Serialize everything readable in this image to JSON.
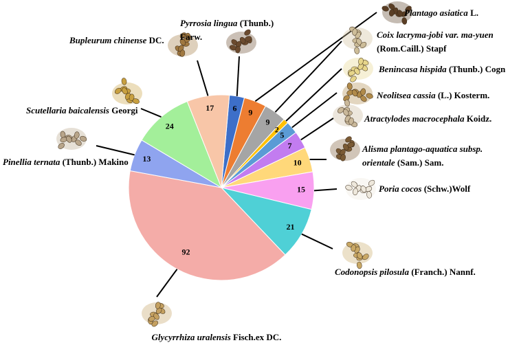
{
  "chart_data": {
    "type": "pie",
    "categories": [
      "Pyrrosia lingua",
      "Plantago asiatica",
      "Coix lacryma-jobi var. ma-yuen",
      "Benincasa hispida",
      "Neolitsea cassia",
      "Atractylodes macrocephala",
      "Alisma plantago-aquatica subsp. orientale",
      "Poria cocos",
      "Codonopsis pilosula",
      "Glycyrrhiza uralensis",
      "Pinellia ternata",
      "Scutellaria baicalensis",
      "Bupleurum chinense"
    ],
    "authorities": [
      "(Thunb.) Farw.",
      "L.",
      "(Rom.Caill.) Stapf",
      "(Thunb.) Cogn",
      "(L.) Kosterm.",
      "Koidz.",
      "(Sam.) Sam.",
      "(Schw.)Wolf",
      "(Franch.) Nannf.",
      "Fisch.ex DC.",
      "(Thunb.) Makino",
      "Georgi",
      "DC."
    ],
    "values": [
      6,
      9,
      9,
      2,
      5,
      7,
      10,
      15,
      21,
      92,
      13,
      24,
      17
    ],
    "colors": [
      "#3d6fc9",
      "#ed7d31",
      "#a5a5a5",
      "#ffc000",
      "#5b9bd5",
      "#c27cf0",
      "#ffd87a",
      "#f9a0f0",
      "#4fd0d6",
      "#f4aca8",
      "#8fa4ef",
      "#a3ef9a",
      "#f8c6a8"
    ]
  }
}
